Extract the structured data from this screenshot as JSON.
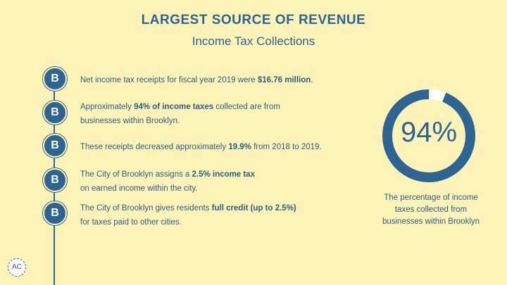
{
  "header": {
    "title": "LARGEST SOURCE OF REVENUE",
    "subtitle": "Income Tax Collections"
  },
  "bullet_letter": "B",
  "items": [
    {
      "pre": "Net income tax receipts for fiscal year 2019 were ",
      "bold": "$16.76 million",
      "post": "."
    },
    {
      "pre": "Approximately ",
      "bold": "94% of income taxes",
      "post": " collected are from",
      "line2": "businesses within Brooklyn."
    },
    {
      "pre": "These receipts decreased approximately ",
      "bold": "19.9%",
      "post": " from 2018 to 2019."
    },
    {
      "pre": "The City of Brooklyn assigns a ",
      "bold": "2.5% income tax",
      "post": "",
      "line2": "on earned income within the city."
    },
    {
      "pre": "The City of Brooklyn gives residents ",
      "bold": "full credit (up to 2.5%)",
      "post": "",
      "line2": "for taxes paid to other cities."
    }
  ],
  "stat": {
    "value_text": "94%",
    "fraction": 0.94,
    "caption_line1": "The percentage of income",
    "caption_line2": "taxes collected from",
    "caption_line3": "businesses within Brooklyn"
  },
  "logo": {
    "text": "AC"
  },
  "colors": {
    "background": "#fdf2b8",
    "accent": "#2d6491",
    "ring_track": "#ffffff"
  }
}
